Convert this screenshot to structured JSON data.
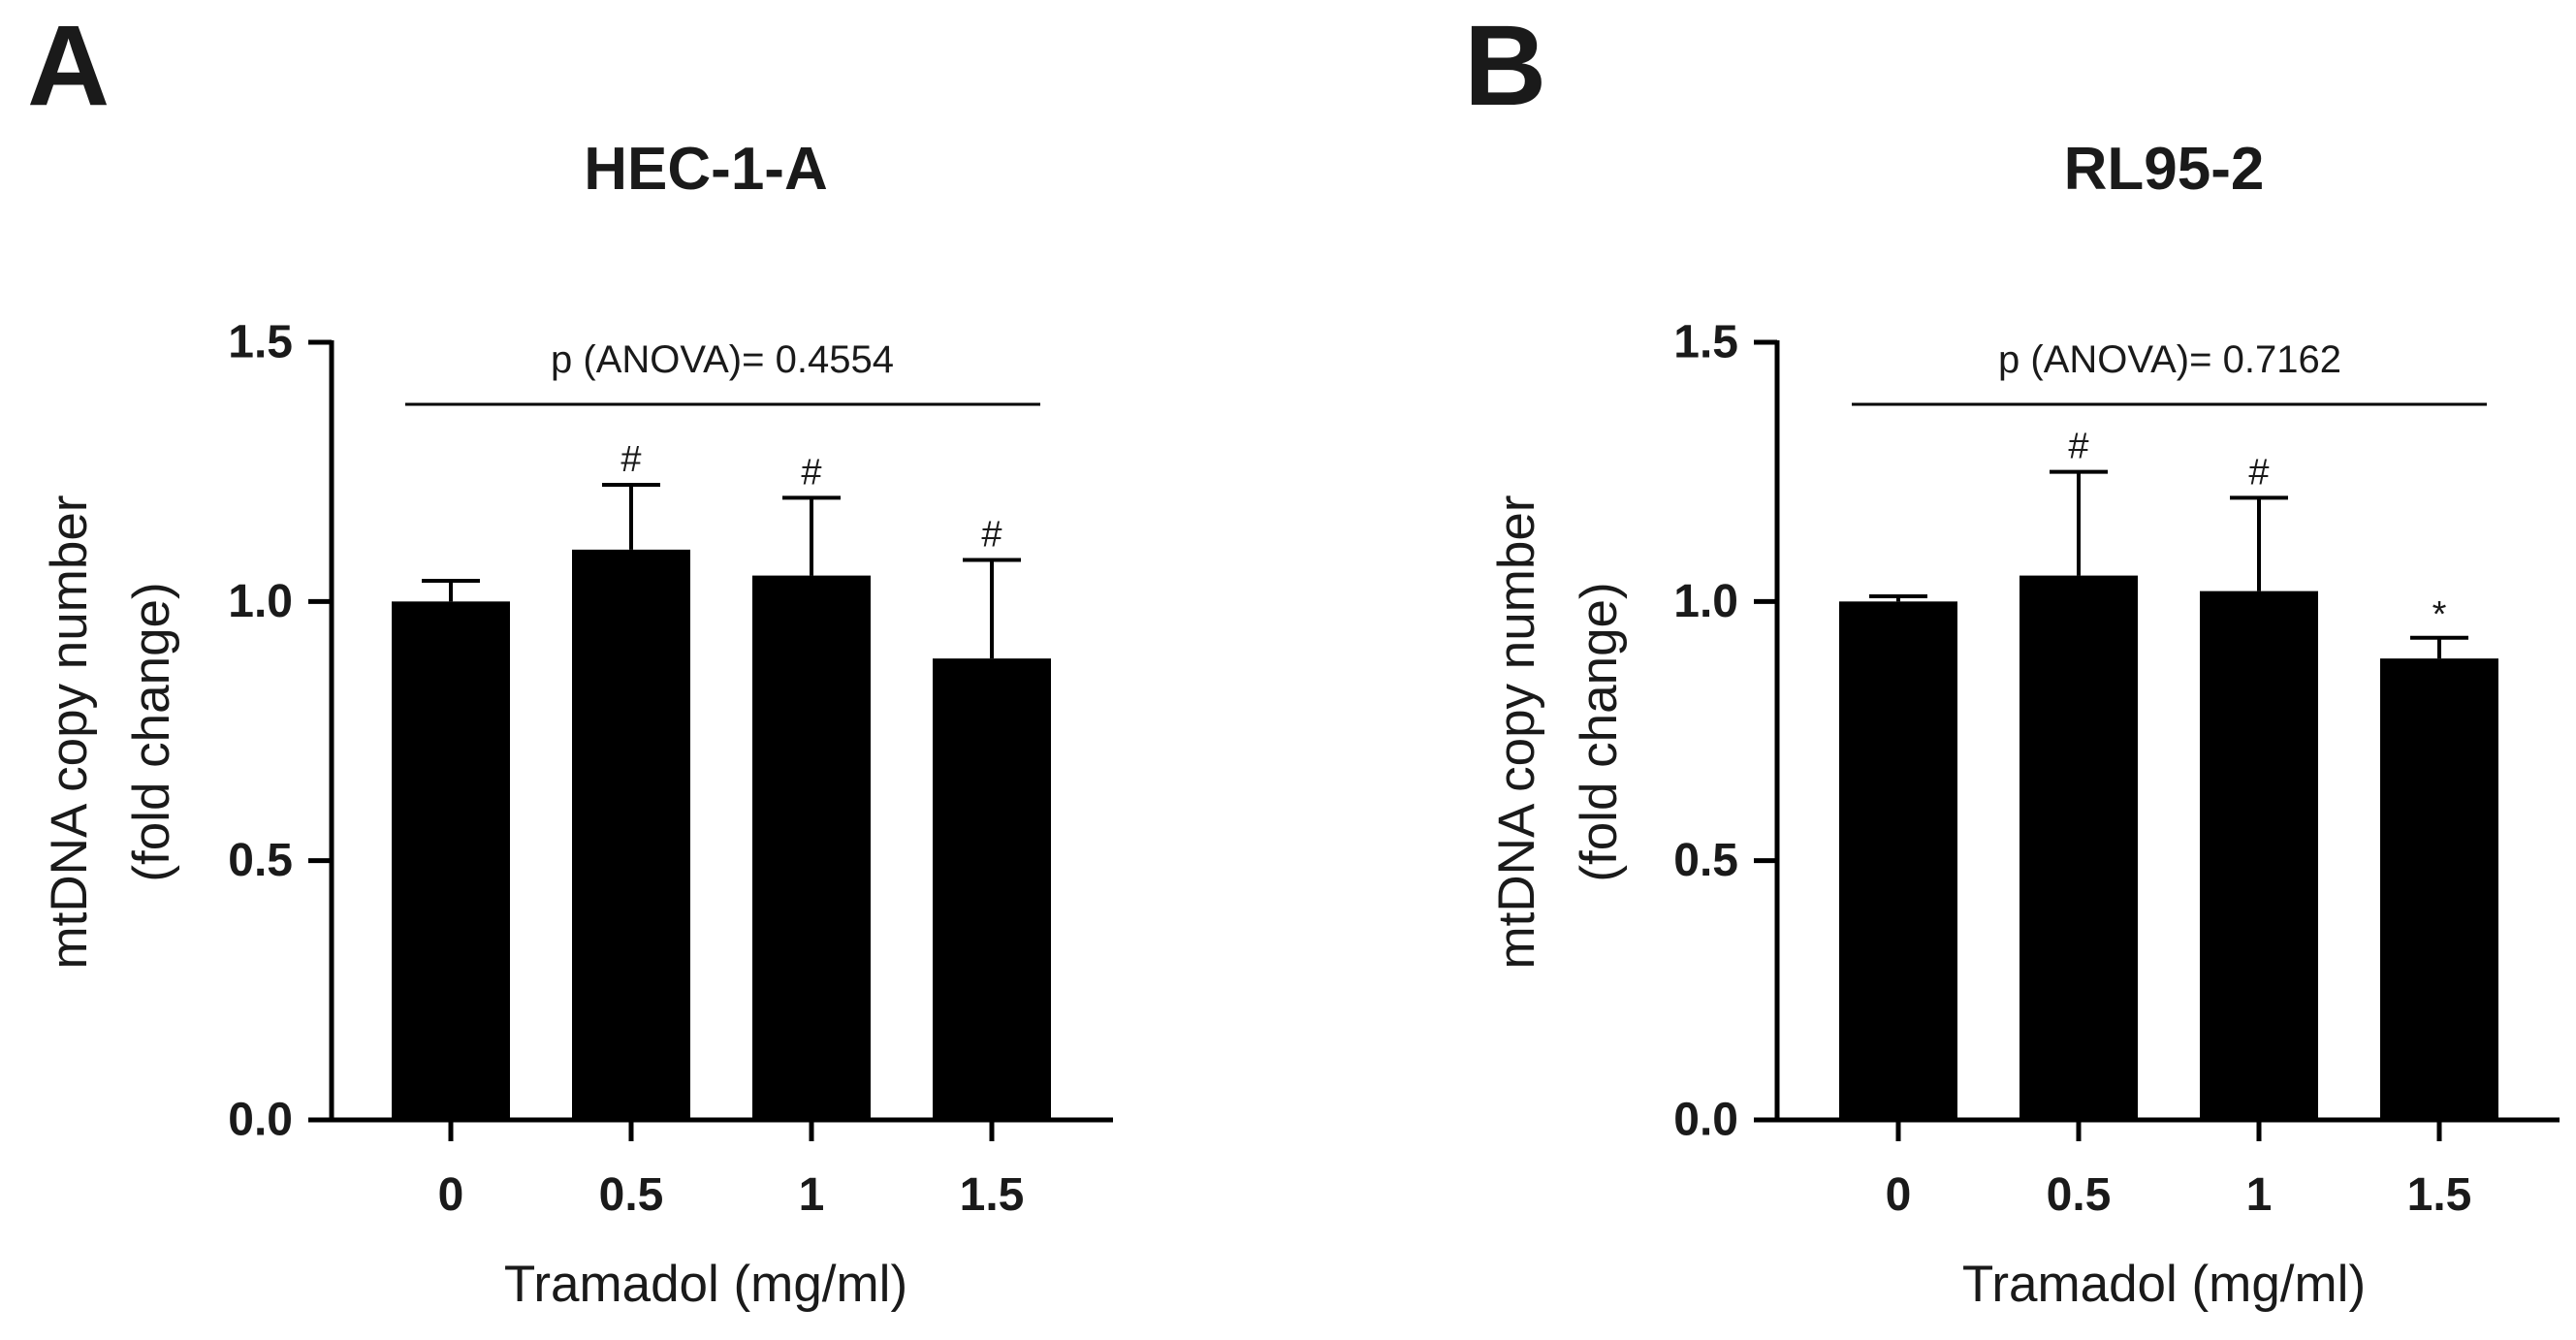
{
  "figure": {
    "panels": [
      "A",
      "B"
    ]
  },
  "chart_data": [
    {
      "panel": "A",
      "type": "bar",
      "title": "HEC-1-A",
      "categories": [
        "0",
        "0.5",
        "1",
        "1.5"
      ],
      "values": [
        1.0,
        1.1,
        1.05,
        0.89
      ],
      "errors": [
        0.04,
        0.125,
        0.15,
        0.19
      ],
      "significance": [
        "",
        "#",
        "#",
        "#"
      ],
      "annotation": "p (ANOVA)= 0.4554",
      "xlabel": "Tramadol (mg/ml)",
      "ylabel_lines": [
        "mtDNA copy number",
        "(fold change)"
      ],
      "ylim": [
        0,
        1.5
      ],
      "yticks": [
        "0.0",
        "0.5",
        "1.0",
        "1.5"
      ],
      "color": "#000000"
    },
    {
      "panel": "B",
      "type": "bar",
      "title": "RL95-2",
      "categories": [
        "0",
        "0.5",
        "1",
        "1.5"
      ],
      "values": [
        1.0,
        1.05,
        1.02,
        0.89
      ],
      "errors": [
        0.01,
        0.2,
        0.18,
        0.04
      ],
      "significance": [
        "",
        "#",
        "#",
        "*"
      ],
      "annotation": "p (ANOVA)= 0.7162",
      "xlabel": "Tramadol (mg/ml)",
      "ylabel_lines": [
        "mtDNA copy number",
        "(fold change)"
      ],
      "ylim": [
        0,
        1.5
      ],
      "yticks": [
        "0.0",
        "0.5",
        "1.0",
        "1.5"
      ],
      "color": "#000000"
    }
  ]
}
